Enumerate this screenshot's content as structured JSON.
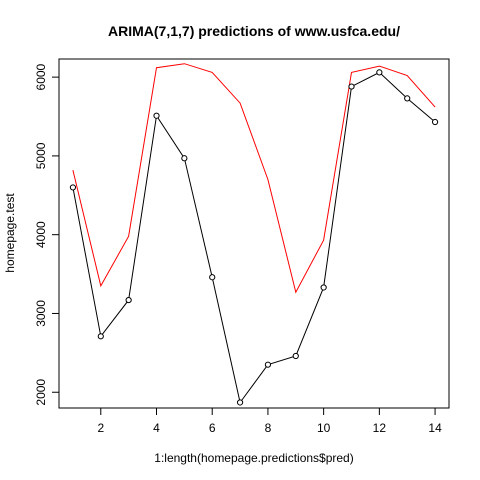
{
  "chart_data": {
    "type": "line",
    "title": "ARIMA(7,1,7) predictions of www.usfca.edu/",
    "xlabel": "1:length(homepage.predictions$pred)",
    "ylabel": "homepage.test",
    "x": [
      1,
      2,
      3,
      4,
      5,
      6,
      7,
      8,
      9,
      10,
      11,
      12,
      13,
      14
    ],
    "xlim": [
      0.5,
      14.5
    ],
    "ylim": [
      1800,
      6230
    ],
    "x_ticks": [
      2,
      4,
      6,
      8,
      10,
      12,
      14
    ],
    "y_ticks": [
      2000,
      3000,
      4000,
      5000,
      6000
    ],
    "grid": false,
    "series": [
      {
        "color": "#000000",
        "style": "line-with-open-circles",
        "values": [
          4600,
          2710,
          3170,
          5510,
          4970,
          3460,
          1870,
          2350,
          2460,
          3330,
          5880,
          6060,
          5730,
          5430
        ]
      },
      {
        "color": "#ff0000",
        "style": "line",
        "values": [
          4820,
          3350,
          3980,
          6120,
          6170,
          6060,
          5670,
          4700,
          3270,
          3930,
          6060,
          6140,
          6020,
          5620
        ]
      }
    ]
  }
}
